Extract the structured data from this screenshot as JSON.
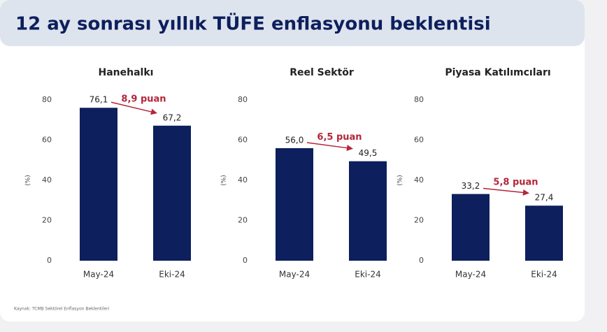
{
  "title": "12 ay sonrası yıllık TÜFE enflasyonu beklentisi",
  "source": "Kaynak: TCMB Sektörel Enflasyon Beklentileri",
  "chart_data": [
    {
      "type": "bar",
      "title": "Hanehalkı",
      "y_label": "(%)",
      "categories": [
        "May-24",
        "Eki-24"
      ],
      "values": [
        76.1,
        67.2
      ],
      "value_labels": [
        "76,1",
        "67,2"
      ],
      "color": "#0d1f5c",
      "ylim": [
        0,
        80
      ],
      "yticks": [
        0,
        20,
        40,
        60,
        80
      ],
      "grid": false,
      "annotation": "8,9 puan"
    },
    {
      "type": "bar",
      "title": "Reel Sektör",
      "y_label": "(%)",
      "categories": [
        "May-24",
        "Eki-24"
      ],
      "values": [
        56.0,
        49.5
      ],
      "value_labels": [
        "56,0",
        "49,5"
      ],
      "color": "#0d1f5c",
      "ylim": [
        0,
        80
      ],
      "yticks": [
        0,
        20,
        40,
        60,
        80
      ],
      "grid": false,
      "annotation": "6,5 puan"
    },
    {
      "type": "bar",
      "title": "Piyasa Katılımcıları",
      "y_label": "(%)",
      "categories": [
        "May-24",
        "Eki-24"
      ],
      "values": [
        33.2,
        27.4
      ],
      "value_labels": [
        "33,2",
        "27,4"
      ],
      "color": "#0d1f5c",
      "ylim": [
        0,
        80
      ],
      "yticks": [
        0,
        20,
        40,
        60,
        80
      ],
      "grid": false,
      "annotation": "5,8 puan"
    }
  ]
}
